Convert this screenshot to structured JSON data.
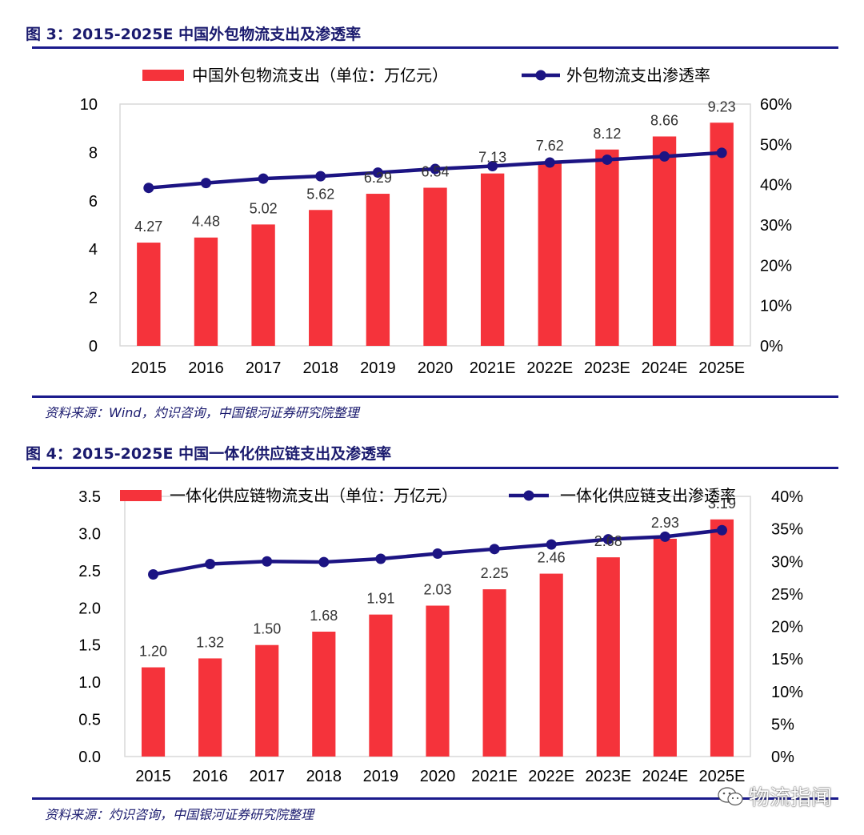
{
  "figures": [
    {
      "caption": "图 3：2015-2025E 中国外包物流支出及渗透率",
      "source": "资料来源：Wind，灼识咨询，中国银河证券研究院整理"
    },
    {
      "caption": "图 4：2015-2025E 中国一体化供应链支出及渗透率",
      "source": "资料来源：灼识咨询，中国银河证券研究院整理"
    }
  ],
  "watermark": {
    "text": "物流指闻",
    "icon": "wechat-icon"
  },
  "colors": {
    "bar": "#f5333b",
    "line": "#1c1483",
    "rule": "#1a1a8c",
    "title": "#1a1a6e"
  },
  "chart_data": [
    {
      "type": "bar+line",
      "title": "图 3：2015-2025E 中国外包物流支出及渗透率",
      "categories": [
        "2015",
        "2016",
        "2017",
        "2018",
        "2019",
        "2020",
        "2021E",
        "2022E",
        "2023E",
        "2024E",
        "2025E"
      ],
      "series": [
        {
          "name": "中国外包物流支出（单位：万亿元）",
          "type": "bar",
          "axis": "left",
          "values": [
            4.27,
            4.48,
            5.02,
            5.62,
            6.29,
            6.54,
            7.13,
            7.62,
            8.12,
            8.66,
            9.23
          ],
          "labels": [
            "4.27",
            "4.48",
            "5.02",
            "5.62",
            "6.29",
            "6.54",
            "7.13",
            "7.62",
            "8.12",
            "8.66",
            "9.23"
          ]
        },
        {
          "name": "外包物流支出渗透率",
          "type": "line",
          "axis": "right",
          "values": [
            39.2,
            40.4,
            41.5,
            42.1,
            43.0,
            43.9,
            44.6,
            45.5,
            46.2,
            47.0,
            47.9
          ]
        }
      ],
      "left_axis": {
        "min": 0,
        "max": 10,
        "ticks": [
          "0",
          "2",
          "4",
          "6",
          "8",
          "10"
        ]
      },
      "right_axis": {
        "min": 0,
        "max": 60,
        "ticks": [
          "0%",
          "10%",
          "20%",
          "30%",
          "40%",
          "50%",
          "60%"
        ]
      },
      "legend_position": "top"
    },
    {
      "type": "bar+line",
      "title": "图 4：2015-2025E 中国一体化供应链支出及渗透率",
      "categories": [
        "2015",
        "2016",
        "2017",
        "2018",
        "2019",
        "2020",
        "2021E",
        "2022E",
        "2023E",
        "2024E",
        "2025E"
      ],
      "series": [
        {
          "name": "一体化供应链物流支出（单位：万亿元）",
          "type": "bar",
          "axis": "left",
          "values": [
            1.2,
            1.32,
            1.5,
            1.68,
            1.91,
            2.03,
            2.25,
            2.46,
            2.68,
            2.93,
            3.19
          ],
          "labels": [
            "1.20",
            "1.32",
            "1.50",
            "1.68",
            "1.91",
            "2.03",
            "2.25",
            "2.46",
            "2.68",
            "2.93",
            "3.19"
          ]
        },
        {
          "name": "一体化供应链支出渗透率",
          "type": "line",
          "axis": "right",
          "values": [
            28.0,
            29.6,
            30.0,
            29.9,
            30.4,
            31.2,
            31.9,
            32.6,
            33.4,
            33.8,
            34.8
          ]
        }
      ],
      "left_axis": {
        "min": 0,
        "max": 3.5,
        "ticks": [
          "0.0",
          "0.5",
          "1.0",
          "1.5",
          "2.0",
          "2.5",
          "3.0",
          "3.5"
        ]
      },
      "right_axis": {
        "min": 0,
        "max": 40,
        "ticks": [
          "0%",
          "5%",
          "10%",
          "15%",
          "20%",
          "25%",
          "30%",
          "35%",
          "40%"
        ]
      },
      "legend_position": "top"
    }
  ]
}
